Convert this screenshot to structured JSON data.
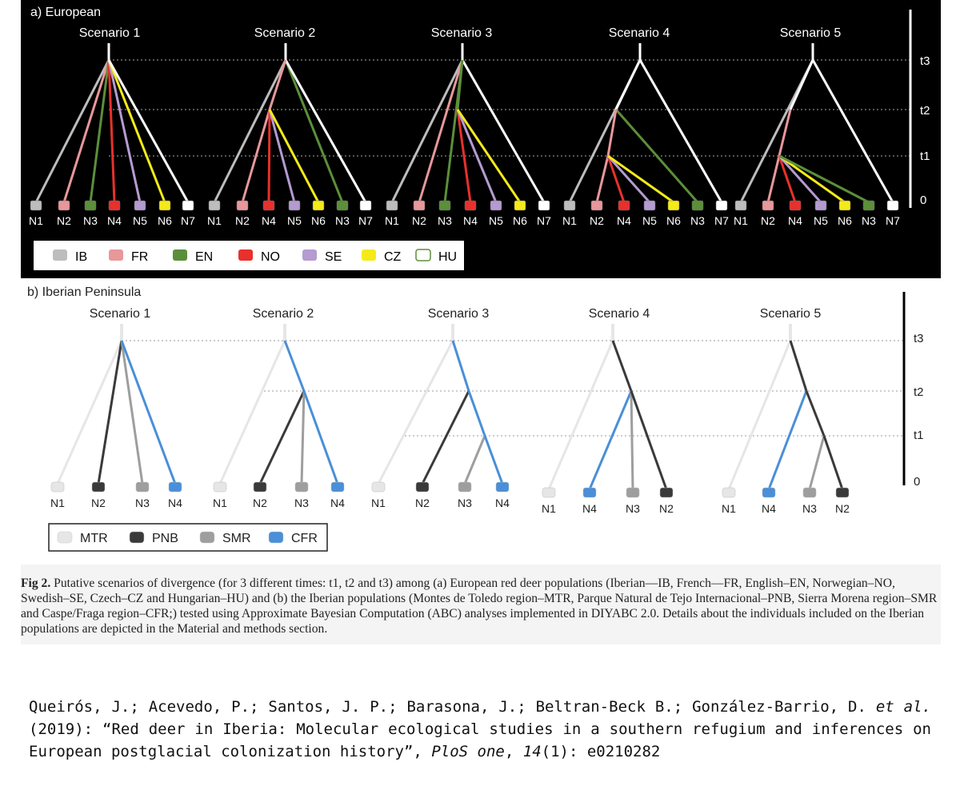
{
  "panel_a": {
    "title": "a) European",
    "colors": {
      "IB": "#bdbdbd",
      "FR": "#e8979a",
      "EN": "#5b8f3a",
      "NO": "#e8302c",
      "SE": "#b49bd0",
      "CZ": "#f5ea19",
      "HU": "#ffffff"
    },
    "time_labels": [
      "t3",
      "t2",
      "t1",
      "0"
    ],
    "scenarios": [
      {
        "name": "Scenario 1",
        "labels": [
          "N1",
          "N2",
          "N3",
          "N4",
          "N5",
          "N6",
          "N7"
        ]
      },
      {
        "name": "Scenario 2",
        "labels": [
          "N1",
          "N2",
          "N4",
          "N5",
          "N6",
          "N3",
          "N7"
        ]
      },
      {
        "name": "Scenario 3",
        "labels": [
          "N1",
          "N2",
          "N3",
          "N4",
          "N5",
          "N6",
          "N7"
        ]
      },
      {
        "name": "Scenario 4",
        "labels": [
          "N1",
          "N2",
          "N4",
          "N5",
          "N6",
          "N3",
          "N7"
        ]
      },
      {
        "name": "Scenario 5",
        "labels": [
          "N1",
          "N2",
          "N4",
          "N5",
          "N6",
          "N3",
          "N7"
        ]
      }
    ],
    "legend": [
      {
        "code": "IB",
        "color": "#bdbdbd"
      },
      {
        "code": "FR",
        "color": "#e8979a"
      },
      {
        "code": "EN",
        "color": "#5b8f3a"
      },
      {
        "code": "NO",
        "color": "#e8302c"
      },
      {
        "code": "SE",
        "color": "#b49bd0"
      },
      {
        "code": "CZ",
        "color": "#f5ea19"
      },
      {
        "code": "HU",
        "color": "#ffffff"
      }
    ]
  },
  "panel_b": {
    "title": "b) Iberian Peninsula",
    "colors": {
      "MTR": "#e6e6e6",
      "PNB": "#3a3a3a",
      "SMR": "#9e9e9e",
      "CFR": "#4a8fd8"
    },
    "time_labels": [
      "t3",
      "t2",
      "t1",
      "0"
    ],
    "scenarios": [
      {
        "name": "Scenario 1",
        "labels": [
          "N1",
          "N2",
          "N3",
          "N4"
        ]
      },
      {
        "name": "Scenario 2",
        "labels": [
          "N1",
          "N2",
          "N3",
          "N4"
        ]
      },
      {
        "name": "Scenario 3",
        "labels": [
          "N1",
          "N2",
          "N3",
          "N4"
        ]
      },
      {
        "name": "Scenario 4",
        "labels": [
          "N1",
          "N4",
          "N3",
          "N2"
        ]
      },
      {
        "name": "Scenario 5",
        "labels": [
          "N1",
          "N4",
          "N3",
          "N2"
        ]
      }
    ],
    "legend": [
      {
        "code": "MTR",
        "color": "#e6e6e6"
      },
      {
        "code": "PNB",
        "color": "#3a3a3a"
      },
      {
        "code": "SMR",
        "color": "#9e9e9e"
      },
      {
        "code": "CFR",
        "color": "#4a8fd8"
      }
    ]
  },
  "caption": {
    "label": "Fig 2.",
    "text": "Putative scenarios of divergence (for 3 different times: t1, t2 and t3) among (a) European red deer populations (Iberian—IB, French—FR, English–EN, Norwegian–NO, Swedish–SE, Czech–CZ and Hungarian–HU) and (b) the Iberian populations (Montes de Toledo region–MTR, Parque Natural de Tejo Internacional–PNB, Sierra Morena region–SMR and Caspe/Fraga region–CFR;) tested using Approximate Bayesian Computation (ABC) analyses implemented in DIYABC 2.0. Details about the individuals included on the Iberian populations are depicted in the Material and methods section."
  },
  "citation": {
    "authors": "Queirós, J.; Acevedo, P.; Santos, J. P.; Barasona, J.; Beltran-Beck B.; González-Barrio, D.",
    "etal": "et al.",
    "year_title": "(2019): “Red deer in Iberia: Molecular ecological studies in a southern refugium and inferences on European postglacial colonization history”,",
    "journal": "PloS one",
    "volume": "14",
    "issue_pages": "(1): e0210282"
  }
}
